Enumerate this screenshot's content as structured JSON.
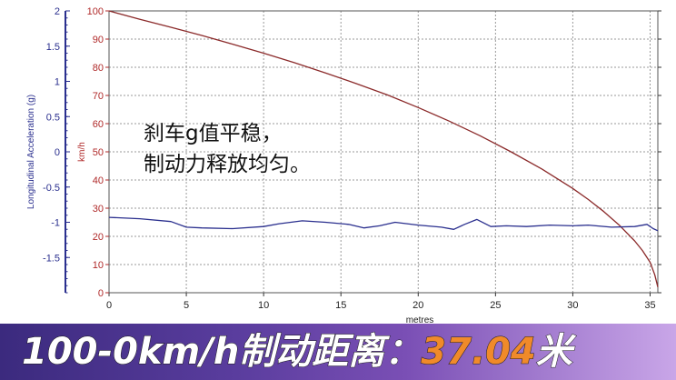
{
  "chart_data": {
    "type": "line",
    "xlabel": "metres",
    "ylabel_left": "Longitudinal Acceleration (g)",
    "ylabel_right": "km/h",
    "xlim": [
      0,
      35.5
    ],
    "ylim_speed": [
      0,
      100
    ],
    "ylim_accel": [
      -2,
      2
    ],
    "x_ticks": [
      0,
      5,
      10,
      15,
      20,
      25,
      30,
      35
    ],
    "speed_ticks": [
      0,
      10,
      20,
      30,
      40,
      50,
      60,
      70,
      80,
      90,
      100
    ],
    "accel_ticks": [
      "-1.5",
      "-1",
      "-0.5",
      "0",
      "0.5",
      "1",
      "1.5",
      "2"
    ],
    "grid": true,
    "series": [
      {
        "color": "#8b2a2a",
        "axis": "speed",
        "x": [
          0,
          2,
          4,
          6,
          8,
          10,
          12,
          14,
          16,
          18,
          20,
          22,
          24,
          26,
          28,
          30,
          31,
          32,
          33,
          34,
          34.5,
          35,
          35.3,
          35.5
        ],
        "y": [
          100,
          97,
          94.2,
          91.3,
          88.2,
          85,
          81.6,
          78,
          74.2,
          70.2,
          65.7,
          60.9,
          55.7,
          50,
          43.9,
          37,
          33.1,
          28.8,
          24,
          18.4,
          15,
          10.8,
          6.4,
          2
        ]
      },
      {
        "color": "#2a2f8e",
        "axis": "accel",
        "x": [
          0,
          2,
          4,
          5,
          6,
          8,
          10,
          11,
          12.5,
          14,
          15.5,
          16.5,
          17.5,
          18.5,
          20,
          21.5,
          22.3,
          23,
          23.8,
          24.7,
          25.7,
          27,
          28.5,
          30,
          31,
          32.5,
          34,
          34.8,
          35.2,
          35.5
        ],
        "y": [
          -0.93,
          -0.95,
          -0.99,
          -1.07,
          -1.08,
          -1.09,
          -1.06,
          -1.02,
          -0.98,
          -1.0,
          -1.03,
          -1.08,
          -1.05,
          -1.0,
          -1.04,
          -1.07,
          -1.1,
          -1.03,
          -0.96,
          -1.06,
          -1.05,
          -1.06,
          -1.04,
          -1.05,
          -1.04,
          -1.07,
          -1.06,
          -1.03,
          -1.09,
          -1.12
        ]
      }
    ]
  },
  "annotation": {
    "line1": "刹车g值平稳，",
    "line2": "制动力释放均匀。"
  },
  "banner": {
    "label": "100-0km/h制动距离：",
    "value": "37.04",
    "unit": "米"
  },
  "colors": {
    "speed_line": "#8b2a2a",
    "accel_line": "#2a2f8e",
    "accel_axis": "#2a2f8e",
    "speed_axis": "#b02a2a"
  }
}
